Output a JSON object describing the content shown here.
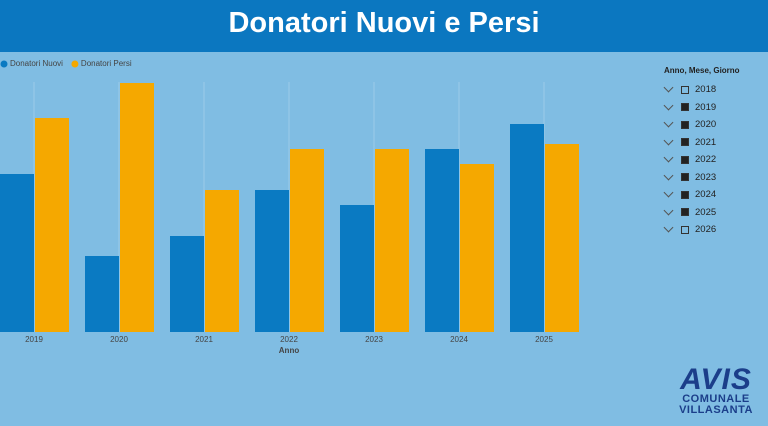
{
  "chart_data": {
    "type": "bar",
    "title": "Donatori Nuovi e Persi",
    "x_label": "Anno",
    "categories": [
      "2019",
      "2020",
      "2021",
      "2022",
      "2023",
      "2024",
      "2025"
    ],
    "series": [
      {
        "name": "Donatori Nuovi",
        "color": "#0a7ac2",
        "values": [
          158,
          76,
          96,
          142,
          127,
          183,
          208
        ]
      },
      {
        "name": "Donatori Persi",
        "color": "#f5a800",
        "values": [
          214,
          249,
          142,
          183,
          183,
          168,
          188
        ]
      }
    ],
    "ylim": [
      0,
      250
    ]
  },
  "slicer": {
    "title": "Anno, Mese, Giorno",
    "items": [
      {
        "label": "2018",
        "checked": false
      },
      {
        "label": "2019",
        "checked": true
      },
      {
        "label": "2020",
        "checked": true
      },
      {
        "label": "2021",
        "checked": true
      },
      {
        "label": "2022",
        "checked": true
      },
      {
        "label": "2023",
        "checked": true
      },
      {
        "label": "2024",
        "checked": true
      },
      {
        "label": "2025",
        "checked": true
      },
      {
        "label": "2026",
        "checked": false
      }
    ]
  },
  "logo": {
    "name": "AVIS",
    "line1": "COMUNALE",
    "line2": "VILLASANTA"
  }
}
